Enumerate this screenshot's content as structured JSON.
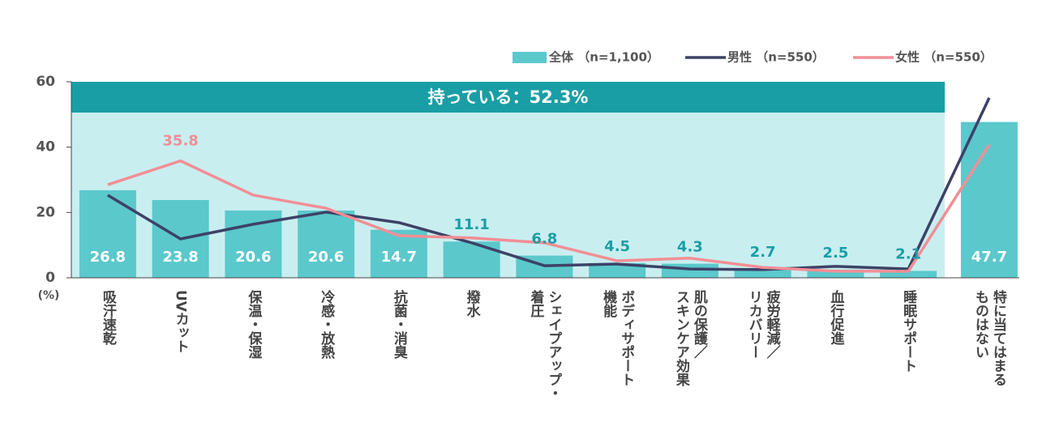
{
  "chart_data": {
    "type": "bar_line",
    "banner": "持っている：52.3%",
    "y_unit": "(%)",
    "categories": [
      "吸汗速乾",
      "UVカット",
      "保温・保湿",
      "冷感・放熱",
      "抗菌・消臭",
      "撥水",
      "シェイプアップ・\n着圧",
      "ボディサポート\n機能",
      "肌の保護／\nスキンケア効果",
      "疲労軽減／\nリカバリー",
      "血行促進",
      "睡眠サポート",
      "特に当てはまる\nものはない"
    ],
    "ylim": [
      0,
      60
    ],
    "yticks": [
      0,
      20,
      40,
      60
    ],
    "legend": "top-right",
    "series": [
      {
        "name": "全体 （n=1,100）",
        "kind": "bar",
        "color": "#5bc8cc",
        "values": [
          26.8,
          23.8,
          20.6,
          20.6,
          14.7,
          11.1,
          6.8,
          4.5,
          4.3,
          2.7,
          2.5,
          2.1,
          47.7
        ]
      },
      {
        "name": "男性 （n=550）",
        "kind": "line",
        "color": "#3d4266",
        "values": [
          25.3,
          11.9,
          16.4,
          20.1,
          16.9,
          10.7,
          3.7,
          4.2,
          2.7,
          2.5,
          3.5,
          2.7,
          55.1
        ]
      },
      {
        "name": "女性 （n=550）",
        "kind": "line",
        "color": "#f28e95",
        "values": [
          28.5,
          35.8,
          25.3,
          21.3,
          12.9,
          12.2,
          10.7,
          5.2,
          6.0,
          3.2,
          2.0,
          2.0,
          40.7
        ],
        "label_points": [
          1
        ]
      }
    ]
  }
}
